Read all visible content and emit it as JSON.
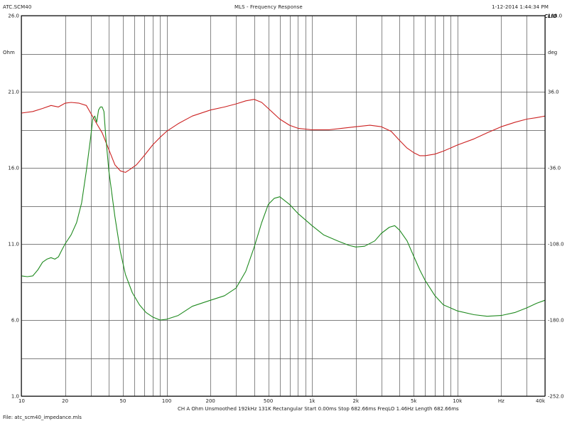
{
  "header": {
    "left": "ATC.SCM40",
    "center": "MLS - Frequency Response",
    "right": "1-12-2014 1:44:34 PM",
    "brand": "CLIO"
  },
  "footer": {
    "params": "CH A   Ohm   Unsmoothed   192kHz   131K   Rectangular   Start 0.00ms   Stop 682.66ms   FreqLO 1.46Hz   Length 682.66ms",
    "file": "File: atc_scm40_impedance.mls"
  },
  "chart_data": {
    "type": "line",
    "x_scale": "log",
    "xlim": [
      10,
      40000
    ],
    "ylim": [
      1,
      26
    ],
    "y2lim": [
      -252,
      108
    ],
    "grid": true,
    "ylabel": "Ohm",
    "y2label": "deg",
    "x_ticks": [
      {
        "value": 10,
        "label": "10"
      },
      {
        "value": 20,
        "label": "20"
      },
      {
        "value": 50,
        "label": "50"
      },
      {
        "value": 100,
        "label": "100"
      },
      {
        "value": 200,
        "label": "200"
      },
      {
        "value": 500,
        "label": "500"
      },
      {
        "value": 1000,
        "label": "1k"
      },
      {
        "value": 2000,
        "label": "2k"
      },
      {
        "value": 5000,
        "label": "5k"
      },
      {
        "value": 10000,
        "label": "10k"
      },
      {
        "value": 20000,
        "label": "Hz"
      },
      {
        "value": 40000,
        "label": "40k"
      }
    ],
    "y_ticks": [
      "26.0",
      "21.0",
      "16.0",
      "11.0",
      "6.0",
      "1.0"
    ],
    "y2_ticks": [
      "108.0",
      "36.0",
      "-36.0",
      "-108.0",
      "-180.0",
      "-252.0"
    ],
    "series": [
      {
        "color": "#cc2222",
        "points": [
          [
            10,
            19.6
          ],
          [
            12,
            19.7
          ],
          [
            14,
            19.9
          ],
          [
            16,
            20.1
          ],
          [
            18,
            20.0
          ],
          [
            20,
            20.25
          ],
          [
            22,
            20.3
          ],
          [
            25,
            20.25
          ],
          [
            28,
            20.1
          ],
          [
            30,
            19.6
          ],
          [
            33,
            18.9
          ],
          [
            36,
            18.3
          ],
          [
            40,
            17.2
          ],
          [
            44,
            16.2
          ],
          [
            48,
            15.8
          ],
          [
            52,
            15.7
          ],
          [
            56,
            15.9
          ],
          [
            62,
            16.2
          ],
          [
            70,
            16.8
          ],
          [
            80,
            17.5
          ],
          [
            90,
            18.0
          ],
          [
            100,
            18.4
          ],
          [
            120,
            18.9
          ],
          [
            150,
            19.4
          ],
          [
            200,
            19.8
          ],
          [
            250,
            20.0
          ],
          [
            300,
            20.2
          ],
          [
            350,
            20.4
          ],
          [
            400,
            20.5
          ],
          [
            450,
            20.3
          ],
          [
            500,
            19.9
          ],
          [
            600,
            19.2
          ],
          [
            700,
            18.8
          ],
          [
            800,
            18.6
          ],
          [
            1000,
            18.5
          ],
          [
            1300,
            18.5
          ],
          [
            1600,
            18.6
          ],
          [
            2000,
            18.7
          ],
          [
            2500,
            18.8
          ],
          [
            3000,
            18.7
          ],
          [
            3500,
            18.4
          ],
          [
            4000,
            17.8
          ],
          [
            4500,
            17.3
          ],
          [
            5000,
            17.0
          ],
          [
            5500,
            16.8
          ],
          [
            6000,
            16.8
          ],
          [
            7000,
            16.9
          ],
          [
            8000,
            17.1
          ],
          [
            10000,
            17.5
          ],
          [
            13000,
            17.9
          ],
          [
            16000,
            18.3
          ],
          [
            20000,
            18.7
          ],
          [
            25000,
            19.0
          ],
          [
            30000,
            19.2
          ],
          [
            35000,
            19.3
          ],
          [
            40000,
            19.4
          ]
        ]
      },
      {
        "color": "#1f8a1f",
        "points": [
          [
            10,
            8.9
          ],
          [
            11,
            8.85
          ],
          [
            12,
            8.9
          ],
          [
            13,
            9.3
          ],
          [
            14,
            9.8
          ],
          [
            15,
            10.0
          ],
          [
            16,
            10.1
          ],
          [
            17,
            10.0
          ],
          [
            18,
            10.15
          ],
          [
            19,
            10.6
          ],
          [
            20,
            11.0
          ],
          [
            22,
            11.6
          ],
          [
            24,
            12.4
          ],
          [
            26,
            13.7
          ],
          [
            28,
            15.8
          ],
          [
            30,
            18.0
          ],
          [
            31,
            19.2
          ],
          [
            32,
            19.4
          ],
          [
            33,
            19.0
          ],
          [
            34,
            19.8
          ],
          [
            35,
            20.0
          ],
          [
            36,
            20.0
          ],
          [
            37,
            19.7
          ],
          [
            38,
            18.2
          ],
          [
            40,
            15.8
          ],
          [
            44,
            12.8
          ],
          [
            48,
            10.5
          ],
          [
            52,
            9.0
          ],
          [
            58,
            7.8
          ],
          [
            65,
            7.0
          ],
          [
            72,
            6.5
          ],
          [
            80,
            6.2
          ],
          [
            90,
            6.0
          ],
          [
            100,
            6.05
          ],
          [
            120,
            6.3
          ],
          [
            150,
            6.9
          ],
          [
            200,
            7.3
          ],
          [
            250,
            7.6
          ],
          [
            300,
            8.1
          ],
          [
            350,
            9.2
          ],
          [
            400,
            10.8
          ],
          [
            450,
            12.4
          ],
          [
            500,
            13.6
          ],
          [
            550,
            14.0
          ],
          [
            600,
            14.1
          ],
          [
            700,
            13.6
          ],
          [
            800,
            13.0
          ],
          [
            1000,
            12.2
          ],
          [
            1200,
            11.6
          ],
          [
            1500,
            11.2
          ],
          [
            1800,
            10.9
          ],
          [
            2000,
            10.8
          ],
          [
            2300,
            10.85
          ],
          [
            2700,
            11.2
          ],
          [
            3000,
            11.7
          ],
          [
            3400,
            12.1
          ],
          [
            3700,
            12.2
          ],
          [
            4000,
            11.9
          ],
          [
            4500,
            11.2
          ],
          [
            5000,
            10.2
          ],
          [
            5500,
            9.3
          ],
          [
            6000,
            8.6
          ],
          [
            7000,
            7.6
          ],
          [
            8000,
            7.0
          ],
          [
            10000,
            6.6
          ],
          [
            13000,
            6.35
          ],
          [
            16000,
            6.25
          ],
          [
            20000,
            6.3
          ],
          [
            25000,
            6.5
          ],
          [
            30000,
            6.8
          ],
          [
            35000,
            7.1
          ],
          [
            40000,
            7.3
          ]
        ]
      }
    ]
  }
}
